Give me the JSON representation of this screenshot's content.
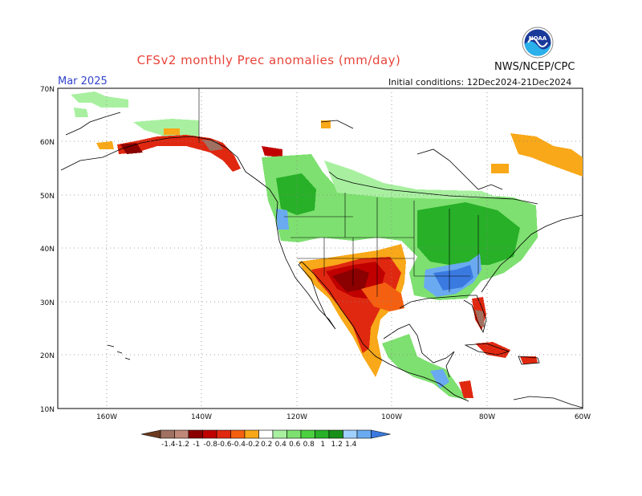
{
  "header": {
    "title": "CFSv2 monthly Prec anomalies (mm/day)",
    "month": "Mar 2025",
    "agency": "NWS/NCEP/CPC",
    "initial_conditions": "Initial conditions: 12Dec2024-21Dec2024",
    "logo_text": "NOAA",
    "logo_icon": "noaa-logo-icon"
  },
  "axes": {
    "lat_labels": [
      "70N",
      "60N",
      "50N",
      "40N",
      "30N",
      "20N",
      "10N"
    ],
    "lon_labels": [
      "160W",
      "140W",
      "120W",
      "100W",
      "80W",
      "60W"
    ]
  },
  "legend": {
    "tick_labels": [
      "-1.4",
      "-1.2",
      "-1",
      "-0.8",
      "-0.6",
      "-0.4",
      "-0.2",
      "0.2",
      "0.4",
      "0.6",
      "0.8",
      "1",
      "1.2",
      "1.4"
    ],
    "colors": [
      "#6b3a1f",
      "#a07060",
      "#c08878",
      "#8b0000",
      "#c00000",
      "#e02810",
      "#f46010",
      "#f8a818",
      "#ffffff",
      "#a8f0a0",
      "#7ee070",
      "#4cd040",
      "#28b028",
      "#189018",
      "#a0d0ff",
      "#6aaaf0",
      "#3a7ae0"
    ]
  }
}
